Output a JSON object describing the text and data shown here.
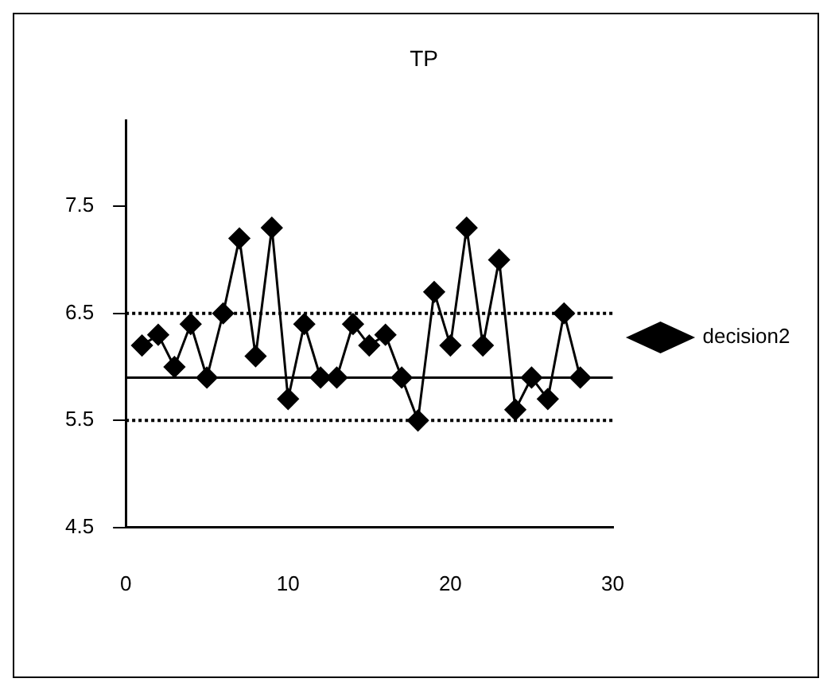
{
  "chart_data": {
    "type": "line",
    "title": "TP",
    "x": [
      1,
      2,
      3,
      4,
      5,
      6,
      7,
      8,
      9,
      10,
      11,
      12,
      13,
      14,
      15,
      16,
      17,
      18,
      19,
      20,
      21,
      22,
      23,
      24,
      25,
      26,
      27,
      28
    ],
    "series": [
      {
        "name": "decision2",
        "color": "#000000",
        "values": [
          6.2,
          6.3,
          6.0,
          6.4,
          5.9,
          6.5,
          7.2,
          6.1,
          7.3,
          5.7,
          6.4,
          5.9,
          5.9,
          6.4,
          6.2,
          6.3,
          5.9,
          5.5,
          6.7,
          6.2,
          7.3,
          6.2,
          7.0,
          5.6,
          5.9,
          5.7,
          6.5,
          5.9
        ]
      }
    ],
    "xlim": [
      0,
      30
    ],
    "xticks": [
      0,
      10,
      20,
      30
    ],
    "ylim": [
      4.5,
      8.3
    ],
    "yticks": [
      4.5,
      5.5,
      6.5,
      7.5
    ],
    "ref_lines": [
      {
        "axis": "y",
        "value": 6.5,
        "color": "#000000",
        "line_style": "dotted"
      },
      {
        "axis": "y",
        "value": 5.9,
        "color": "#000000",
        "line_style": "solid"
      },
      {
        "axis": "y",
        "value": 5.5,
        "color": "#000000",
        "line_style": "dotted"
      }
    ],
    "grid": false,
    "legend": "right",
    "marker": "diamond",
    "line_style": "solid"
  }
}
